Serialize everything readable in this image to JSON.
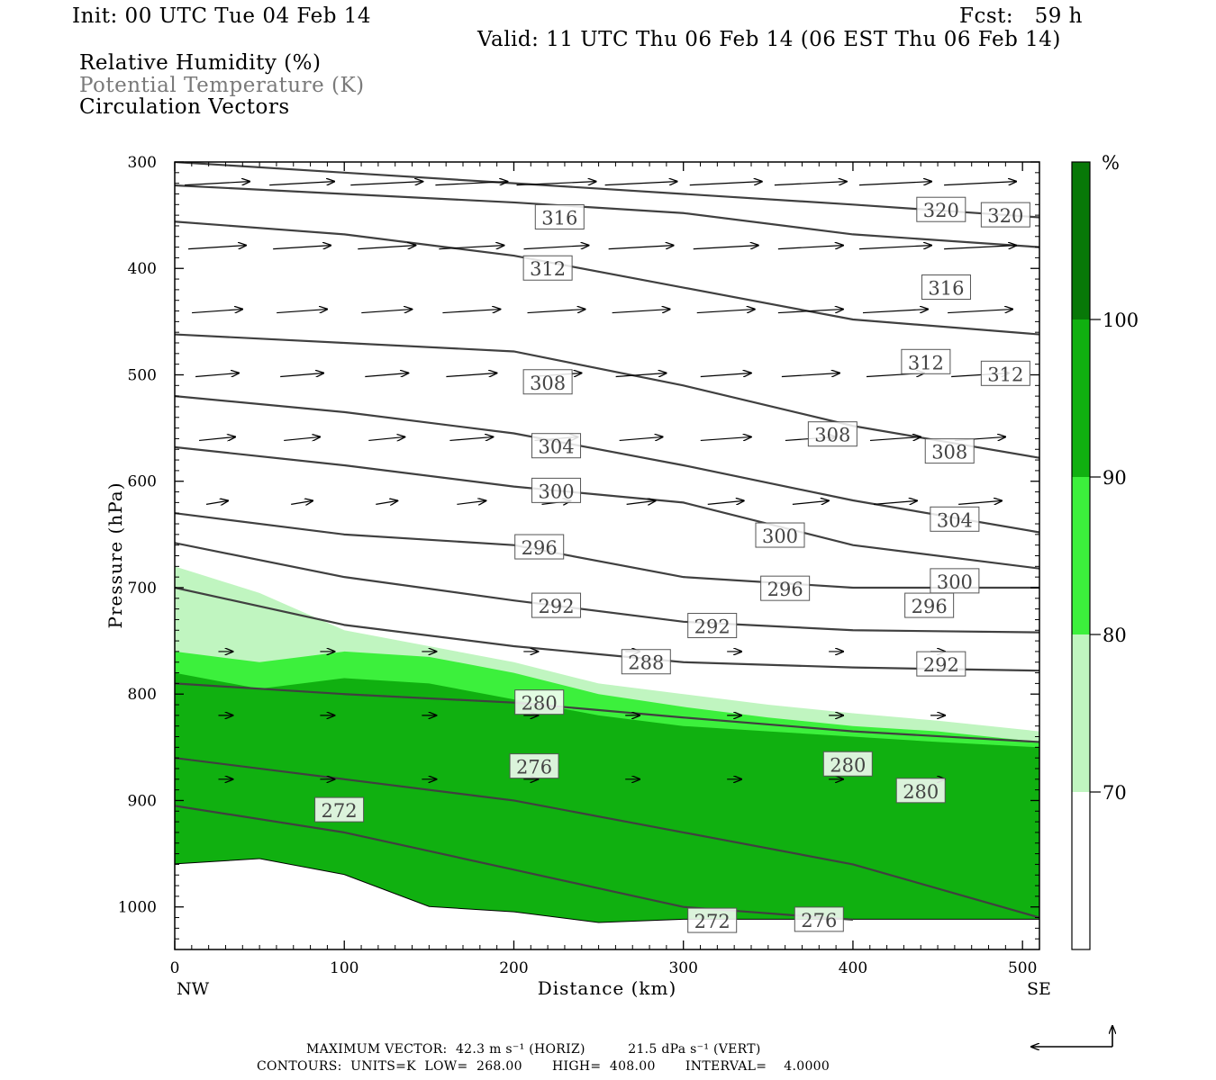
{
  "header": {
    "init": "Init: 00 UTC Tue 04 Feb 14",
    "fcst": "Fcst:   59 h",
    "valid": "Valid: 11 UTC Thu 06 Feb 14 (06 EST Thu 06 Feb 14)",
    "field_rh": "Relative Humidity (%)",
    "field_theta": "Potential Temperature (K)",
    "field_vectors": "Circulation Vectors"
  },
  "colors": {
    "rh_70_80": "#c0f5c0",
    "rh_80_90": "#3cf03c",
    "rh_90_100": "#10b010",
    "rh_100": "#087808",
    "contour": "#404040",
    "frame": "#000000"
  },
  "chart_data": {
    "type": "cross-section",
    "xlabel": "Distance (km)",
    "ylabel": "Pressure (hPa)",
    "xlim": [
      0,
      510
    ],
    "ylim_hpa": [
      300,
      1040
    ],
    "x_ticks": [
      "0",
      "100",
      "200",
      "300",
      "400",
      "500"
    ],
    "x_tick_values": [
      0,
      100,
      200,
      300,
      400,
      500
    ],
    "y_ticks": [
      "300",
      "400",
      "500",
      "600",
      "700",
      "800",
      "900",
      "1000"
    ],
    "y_tick_values": [
      300,
      400,
      500,
      600,
      700,
      800,
      900,
      1000
    ],
    "left_end": "NW",
    "right_end": "SE",
    "colorbar": {
      "unit": "%",
      "levels": [
        "70",
        "80",
        "90",
        "100"
      ],
      "level_values": [
        70,
        80,
        90,
        100
      ]
    },
    "rh_boundaries_hpa": {
      "x": [
        0,
        50,
        100,
        150,
        200,
        250,
        300,
        350,
        400,
        450,
        510
      ],
      "rh70": [
        680,
        705,
        740,
        755,
        770,
        790,
        800,
        810,
        818,
        825,
        835
      ],
      "rh80": [
        760,
        770,
        760,
        765,
        780,
        800,
        812,
        822,
        830,
        835,
        845
      ],
      "rh90": [
        780,
        795,
        785,
        790,
        805,
        820,
        830,
        835,
        840,
        845,
        850
      ],
      "ground": [
        960,
        955,
        970,
        1000,
        1005,
        1015,
        1012,
        1012,
        1012,
        1012,
        1012
      ]
    },
    "theta_contours": [
      {
        "value": 320,
        "x": [
          0,
          100,
          200,
          300,
          400,
          510
        ],
        "p": [
          300,
          310,
          320,
          330,
          340,
          352
        ]
      },
      {
        "value": 316,
        "x": [
          0,
          100,
          200,
          300,
          400,
          510
        ],
        "p": [
          322,
          330,
          338,
          348,
          368,
          380
        ]
      },
      {
        "value": 312,
        "x": [
          0,
          100,
          200,
          300,
          400,
          510
        ],
        "p": [
          356,
          368,
          388,
          418,
          448,
          462
        ]
      },
      {
        "value": 308,
        "x": [
          0,
          100,
          200,
          300,
          400,
          510
        ],
        "p": [
          462,
          470,
          478,
          510,
          548,
          578
        ]
      },
      {
        "value": 304,
        "x": [
          0,
          100,
          200,
          300,
          400,
          510
        ],
        "p": [
          520,
          535,
          555,
          585,
          618,
          648
        ]
      },
      {
        "value": 300,
        "x": [
          0,
          100,
          200,
          300,
          400,
          510
        ],
        "p": [
          568,
          585,
          605,
          620,
          660,
          682
        ]
      },
      {
        "value": 296,
        "x": [
          0,
          100,
          200,
          300,
          400,
          510
        ],
        "p": [
          630,
          650,
          660,
          690,
          700,
          700
        ]
      },
      {
        "value": 292,
        "x": [
          0,
          100,
          200,
          300,
          400,
          510
        ],
        "p": [
          658,
          690,
          712,
          732,
          740,
          742
        ]
      },
      {
        "value": 288,
        "x": [
          0,
          100,
          200,
          300,
          400,
          510
        ],
        "p": [
          700,
          735,
          755,
          770,
          775,
          778
        ]
      },
      {
        "value": 280,
        "x": [
          0,
          100,
          200,
          300,
          400,
          510
        ],
        "p": [
          790,
          800,
          808,
          822,
          835,
          845
        ]
      },
      {
        "value": 276,
        "x": [
          0,
          100,
          200,
          300,
          400,
          510
        ],
        "p": [
          860,
          880,
          900,
          930,
          960,
          1010
        ]
      },
      {
        "value": 272,
        "x": [
          0,
          100,
          200,
          300,
          400
        ],
        "p": [
          905,
          930,
          965,
          1000,
          1012
        ]
      }
    ],
    "contour_labels": [
      {
        "text": "316",
        "x": 227,
        "p": 352
      },
      {
        "text": "312",
        "x": 220,
        "p": 400
      },
      {
        "text": "320",
        "x": 452,
        "p": 345
      },
      {
        "text": "320",
        "x": 490,
        "p": 350
      },
      {
        "text": "316",
        "x": 455,
        "p": 418
      },
      {
        "text": "308",
        "x": 220,
        "p": 507
      },
      {
        "text": "312",
        "x": 443,
        "p": 488
      },
      {
        "text": "312",
        "x": 490,
        "p": 499
      },
      {
        "text": "304",
        "x": 225,
        "p": 567
      },
      {
        "text": "308",
        "x": 388,
        "p": 556
      },
      {
        "text": "308",
        "x": 457,
        "p": 572
      },
      {
        "text": "300",
        "x": 225,
        "p": 609
      },
      {
        "text": "304",
        "x": 460,
        "p": 636
      },
      {
        "text": "296",
        "x": 215,
        "p": 662
      },
      {
        "text": "300",
        "x": 357,
        "p": 651
      },
      {
        "text": "300",
        "x": 460,
        "p": 694
      },
      {
        "text": "296",
        "x": 360,
        "p": 701
      },
      {
        "text": "296",
        "x": 445,
        "p": 717
      },
      {
        "text": "292",
        "x": 225,
        "p": 717
      },
      {
        "text": "292",
        "x": 317,
        "p": 736
      },
      {
        "text": "292",
        "x": 452,
        "p": 772
      },
      {
        "text": "288",
        "x": 278,
        "p": 770
      },
      {
        "text": "280",
        "x": 215,
        "p": 808
      },
      {
        "text": "276",
        "x": 212,
        "p": 868
      },
      {
        "text": "280",
        "x": 397,
        "p": 866
      },
      {
        "text": "280",
        "x": 440,
        "p": 891
      },
      {
        "text": "272",
        "x": 97,
        "p": 909
      },
      {
        "text": "272",
        "x": 317,
        "p": 1013
      },
      {
        "text": "276",
        "x": 380,
        "p": 1012
      }
    ],
    "vectors": {
      "rows_p": [
        320,
        380,
        440,
        500,
        560,
        620
      ],
      "x": [
        25,
        75,
        125,
        175,
        225,
        275,
        325,
        375,
        425,
        475
      ],
      "u": [
        [
          9,
          9,
          10,
          10,
          11,
          10,
          10,
          10,
          10,
          10
        ],
        [
          8,
          8,
          8,
          9,
          9,
          9,
          9,
          9,
          10,
          10
        ],
        [
          7,
          7,
          7,
          8,
          8,
          8,
          8,
          9,
          9,
          9
        ],
        [
          6,
          6,
          6,
          7,
          7,
          7,
          7,
          8,
          8,
          8
        ],
        [
          5,
          5,
          5,
          6,
          6,
          6,
          7,
          7,
          7,
          7
        ],
        [
          3,
          3,
          3,
          4,
          4,
          4,
          5,
          5,
          6,
          6
        ]
      ]
    },
    "lower_vectors": {
      "x": [
        30,
        90,
        150,
        210,
        270,
        330,
        390,
        450
      ],
      "p": [
        760,
        820,
        880
      ]
    }
  },
  "footer": {
    "line1": "MAXIMUM VECTOR:  42.3 m s⁻¹ (HORIZ)          21.5 dPa s⁻¹ (VERT)",
    "line2": "CONTOURS:  UNITS=K  LOW=  268.00       HIGH=  408.00       INTERVAL=    4.0000"
  }
}
